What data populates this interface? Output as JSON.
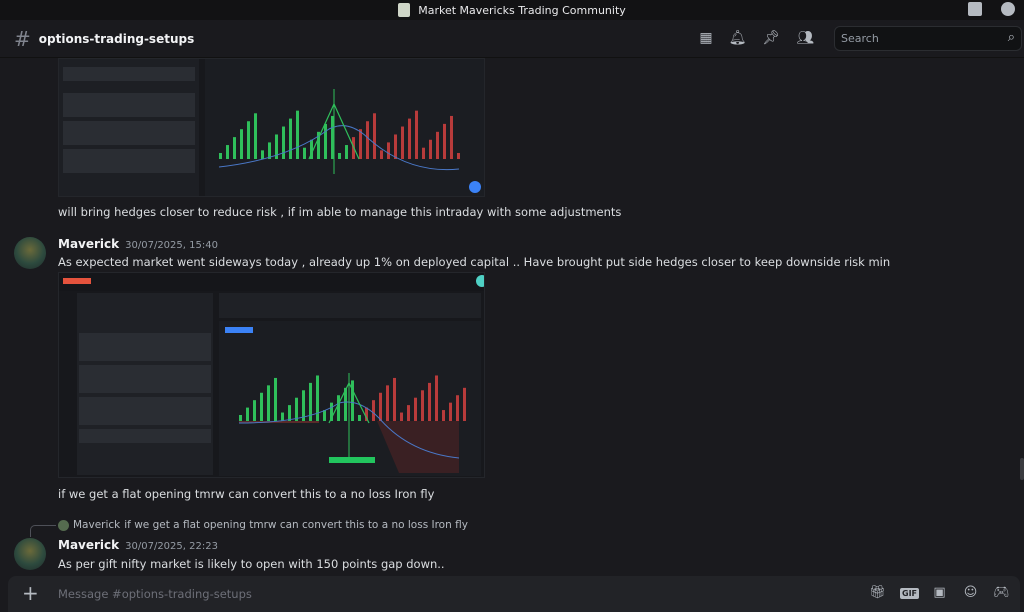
{
  "window": {
    "title": "Market Mavericks Trading Community"
  },
  "channel": {
    "name": "options-trading-setups",
    "search_placeholder": "Search"
  },
  "messages": [
    {
      "text": "will bring hedges closer to reduce risk , if im able to manage this intraday with some adjustments"
    },
    {
      "author": "Maverick",
      "timestamp": "30/07/2025, 15:40",
      "text": "As expected market went sideways today  , already up 1% on deployed capital .. Have brought put side hedges closer to keep downside risk min"
    },
    {
      "text": "if we get a flat opening tmrw can convert this to a no loss Iron fly"
    },
    {
      "reply_to": {
        "author": "Maverick",
        "text": "if we get a flat opening tmrw can convert this to a no loss Iron fly"
      },
      "author": "Maverick",
      "timestamp": "30/07/2025, 22:23",
      "text": "As per gift nifty market is likely to open with 150 points gap down.."
    }
  ],
  "composer": {
    "placeholder": "Message #options-trading-setups"
  },
  "composer_icons": [
    "gift-icon",
    "gif-icon",
    "sticker-icon",
    "emoji-icon",
    "apps-icon"
  ],
  "gif_label": "GIF"
}
